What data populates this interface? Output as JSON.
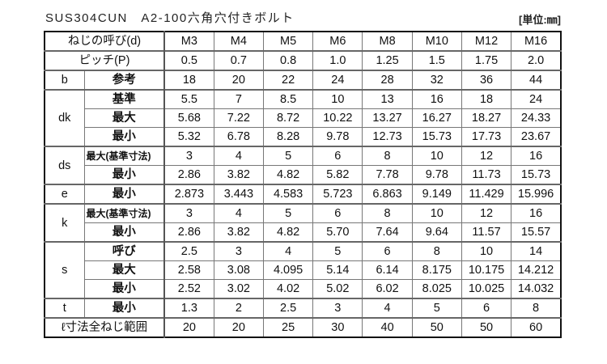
{
  "title": "SUS304CUN　A2-100六角穴付きボルト",
  "unit": "[単位:㎜]",
  "table": {
    "header": {
      "label": "ねじの呼び(d)",
      "sizes": [
        "M3",
        "M4",
        "M5",
        "M6",
        "M8",
        "M10",
        "M12",
        "M16"
      ]
    },
    "pitch": {
      "label": "ピッチ(P)",
      "values": [
        "0.5",
        "0.7",
        "0.8",
        "1.0",
        "1.25",
        "1.5",
        "1.75",
        "2.0"
      ]
    },
    "groups": [
      {
        "name": "b",
        "rows": [
          {
            "sub": "参考",
            "values": [
              "18",
              "20",
              "22",
              "24",
              "28",
              "32",
              "36",
              "44"
            ]
          }
        ]
      },
      {
        "name": "dk",
        "rows": [
          {
            "sub": "基準",
            "values": [
              "5.5",
              "7",
              "8.5",
              "10",
              "13",
              "16",
              "18",
              "24"
            ]
          },
          {
            "sub": "最大",
            "values": [
              "5.68",
              "7.22",
              "8.72",
              "10.22",
              "13.27",
              "16.27",
              "18.27",
              "24.33"
            ]
          },
          {
            "sub": "最小",
            "values": [
              "5.32",
              "6.78",
              "8.28",
              "9.78",
              "12.73",
              "15.73",
              "17.73",
              "23.67"
            ]
          }
        ]
      },
      {
        "name": "ds",
        "rows": [
          {
            "sub": "最大(基準寸法)",
            "values": [
              "3",
              "4",
              "5",
              "6",
              "8",
              "10",
              "12",
              "16"
            ]
          },
          {
            "sub": "最小",
            "values": [
              "2.86",
              "3.82",
              "4.82",
              "5.82",
              "7.78",
              "9.78",
              "11.73",
              "15.73"
            ]
          }
        ]
      },
      {
        "name": "e",
        "rows": [
          {
            "sub": "最小",
            "values": [
              "2.873",
              "3.443",
              "4.583",
              "5.723",
              "6.863",
              "9.149",
              "11.429",
              "15.996"
            ]
          }
        ]
      },
      {
        "name": "k",
        "rows": [
          {
            "sub": "最大(基準寸法)",
            "values": [
              "3",
              "4",
              "5",
              "6",
              "8",
              "10",
              "12",
              "16"
            ]
          },
          {
            "sub": "最小",
            "values": [
              "2.86",
              "3.82",
              "4.82",
              "5.70",
              "7.64",
              "9.64",
              "11.57",
              "15.57"
            ]
          }
        ]
      },
      {
        "name": "s",
        "rows": [
          {
            "sub": "呼び",
            "values": [
              "2.5",
              "3",
              "4",
              "5",
              "6",
              "8",
              "10",
              "14"
            ]
          },
          {
            "sub": "最大",
            "values": [
              "2.58",
              "3.08",
              "4.095",
              "5.14",
              "6.14",
              "8.175",
              "10.175",
              "14.212"
            ]
          },
          {
            "sub": "最小",
            "values": [
              "2.52",
              "3.02",
              "4.02",
              "5.02",
              "6.02",
              "8.025",
              "10.025",
              "14.032"
            ]
          }
        ]
      },
      {
        "name": "t",
        "rows": [
          {
            "sub": "最小",
            "values": [
              "1.3",
              "2",
              "2.5",
              "3",
              "4",
              "5",
              "6",
              "8"
            ]
          }
        ]
      }
    ],
    "thread_range": {
      "label": "ℓ寸法全ねじ範囲",
      "values": [
        "20",
        "20",
        "25",
        "30",
        "40",
        "50",
        "50",
        "60"
      ]
    }
  }
}
